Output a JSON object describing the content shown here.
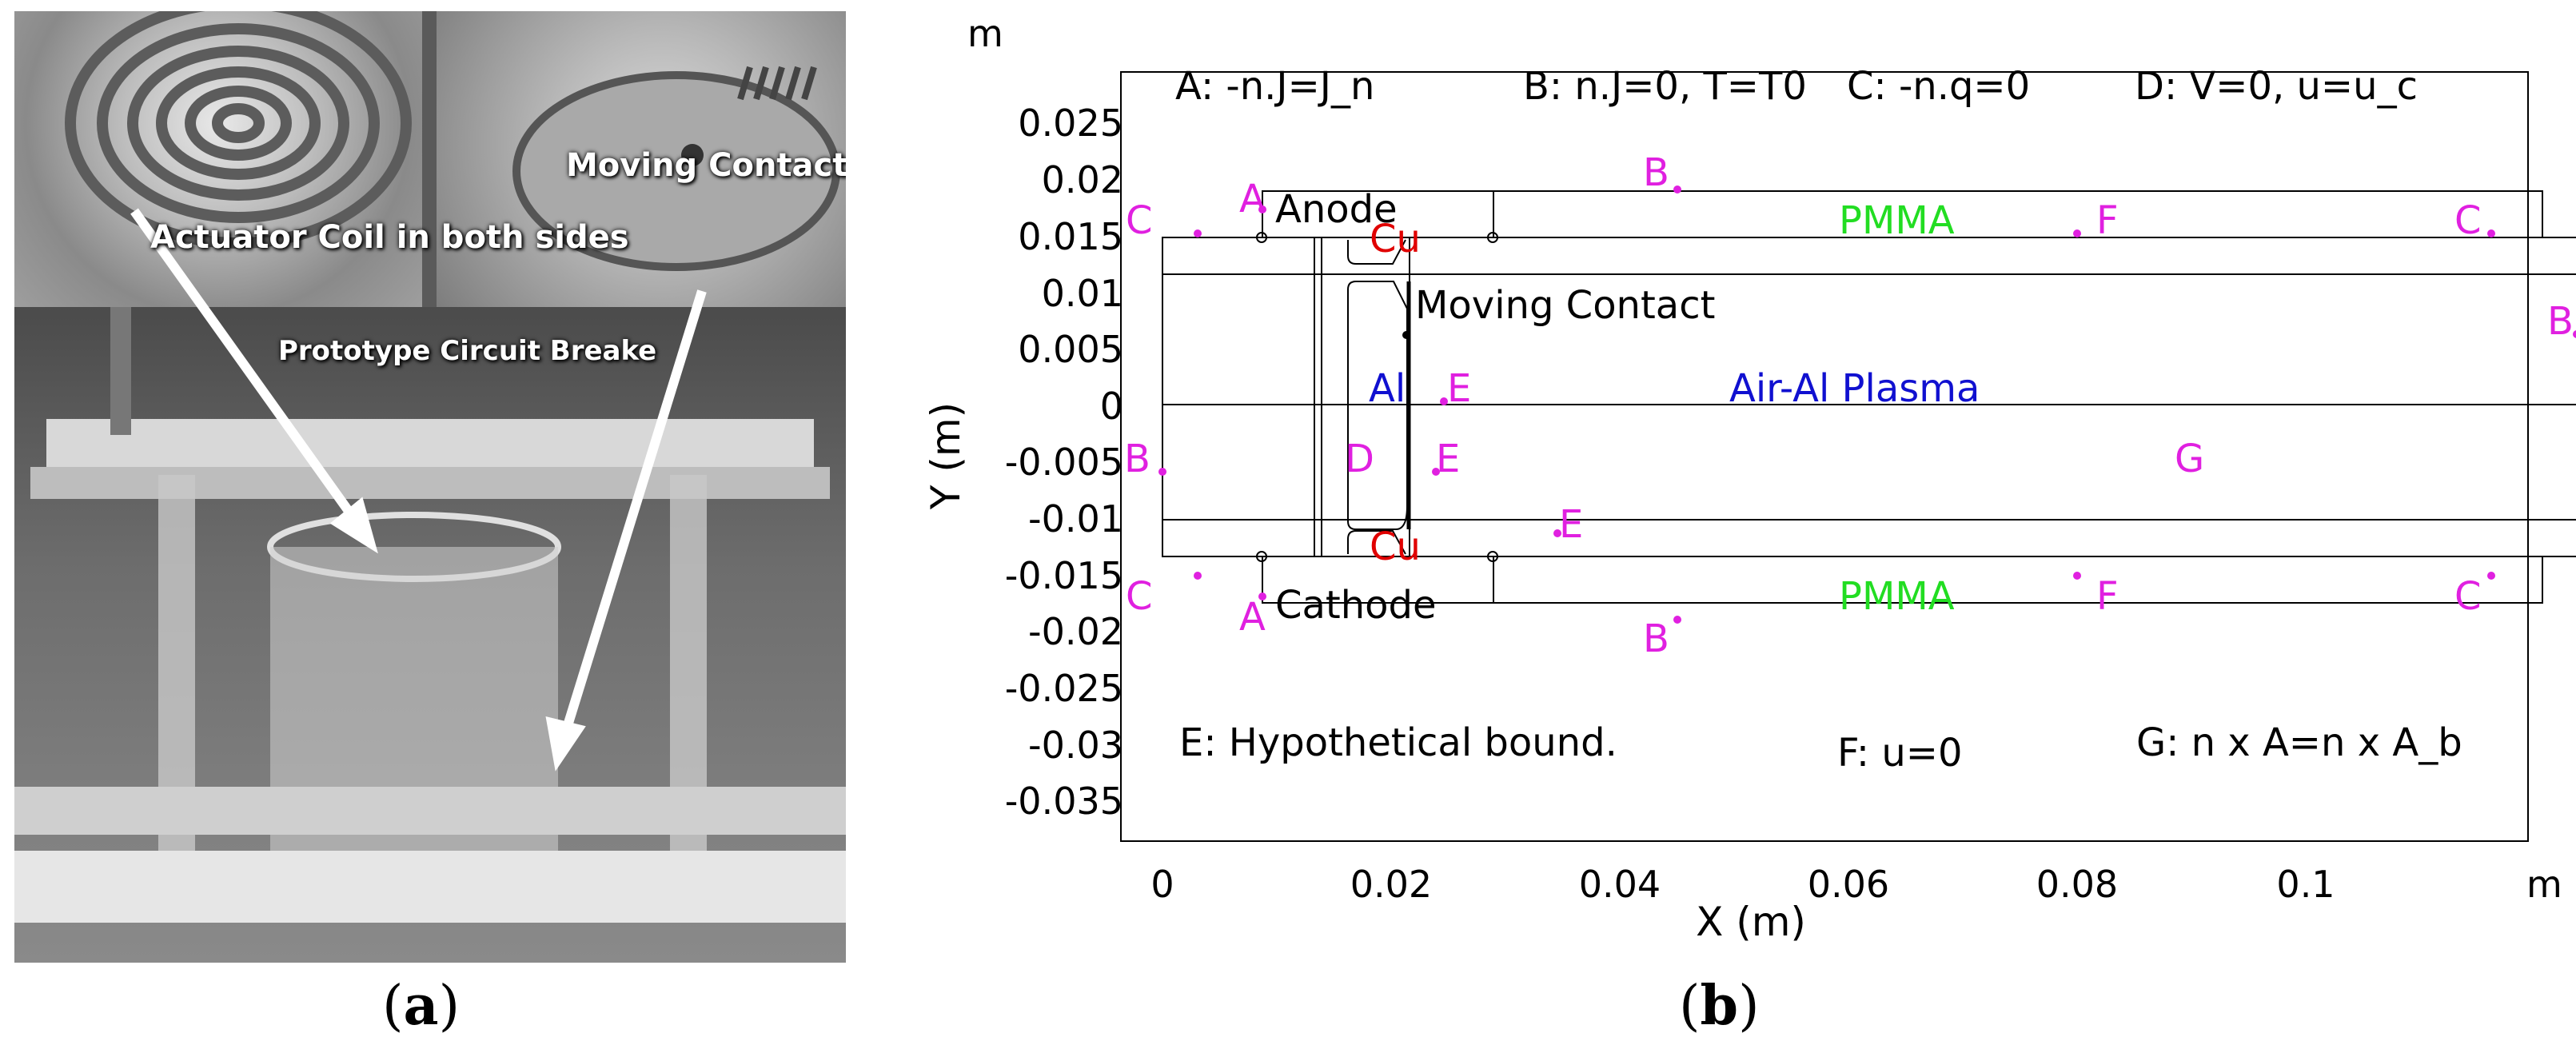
{
  "panel_a": {
    "caption": "a",
    "labels": {
      "actuator_coil": "Actuator Coil in both sides",
      "moving_contact": "Moving Contact",
      "prototype": "Prototype Circuit Breake"
    }
  },
  "panel_b": {
    "caption": "b",
    "unit_top": "m",
    "unit_right": "m",
    "xlabel": "X (m)",
    "ylabel": "Y (m)",
    "x_ticks": [
      "0",
      "0.02",
      "0.04",
      "0.06",
      "0.08",
      "0.1"
    ],
    "y_ticks": [
      "0.025",
      "0.02",
      "0.015",
      "0.01",
      "0.005",
      "0",
      "-0.005",
      "-0.01",
      "-0.015",
      "-0.02",
      "-0.025",
      "-0.03",
      "-0.035"
    ],
    "legend": {
      "a": "A: -n.J=J_n",
      "b": "B: n.J=0, T=T0",
      "c": "C: -n.q=0",
      "d": "D: V=0, u=u_c",
      "e": "E: Hypothetical bound.",
      "f": "F: u=0",
      "g": "G: n x A=n x A_b"
    },
    "regions": {
      "anode": "Anode",
      "cathode": "Cathode",
      "pmma_top": "PMMA",
      "pmma_bottom": "PMMA",
      "cu_top": "Cu",
      "cu_bottom": "Cu",
      "moving_contact": "Moving Contact",
      "al": "Al",
      "plasma": "Air-Al Plasma"
    },
    "boundary_markers": {
      "a": "A",
      "b": "B",
      "c": "C",
      "d": "D",
      "e": "E",
      "f": "F",
      "g": "G"
    },
    "colors": {
      "boundary_marker": "#e020e0",
      "cu": "#e00000",
      "pmma": "#22dd22",
      "al_plasma": "#1010d0",
      "geometry": "#000000"
    }
  }
}
